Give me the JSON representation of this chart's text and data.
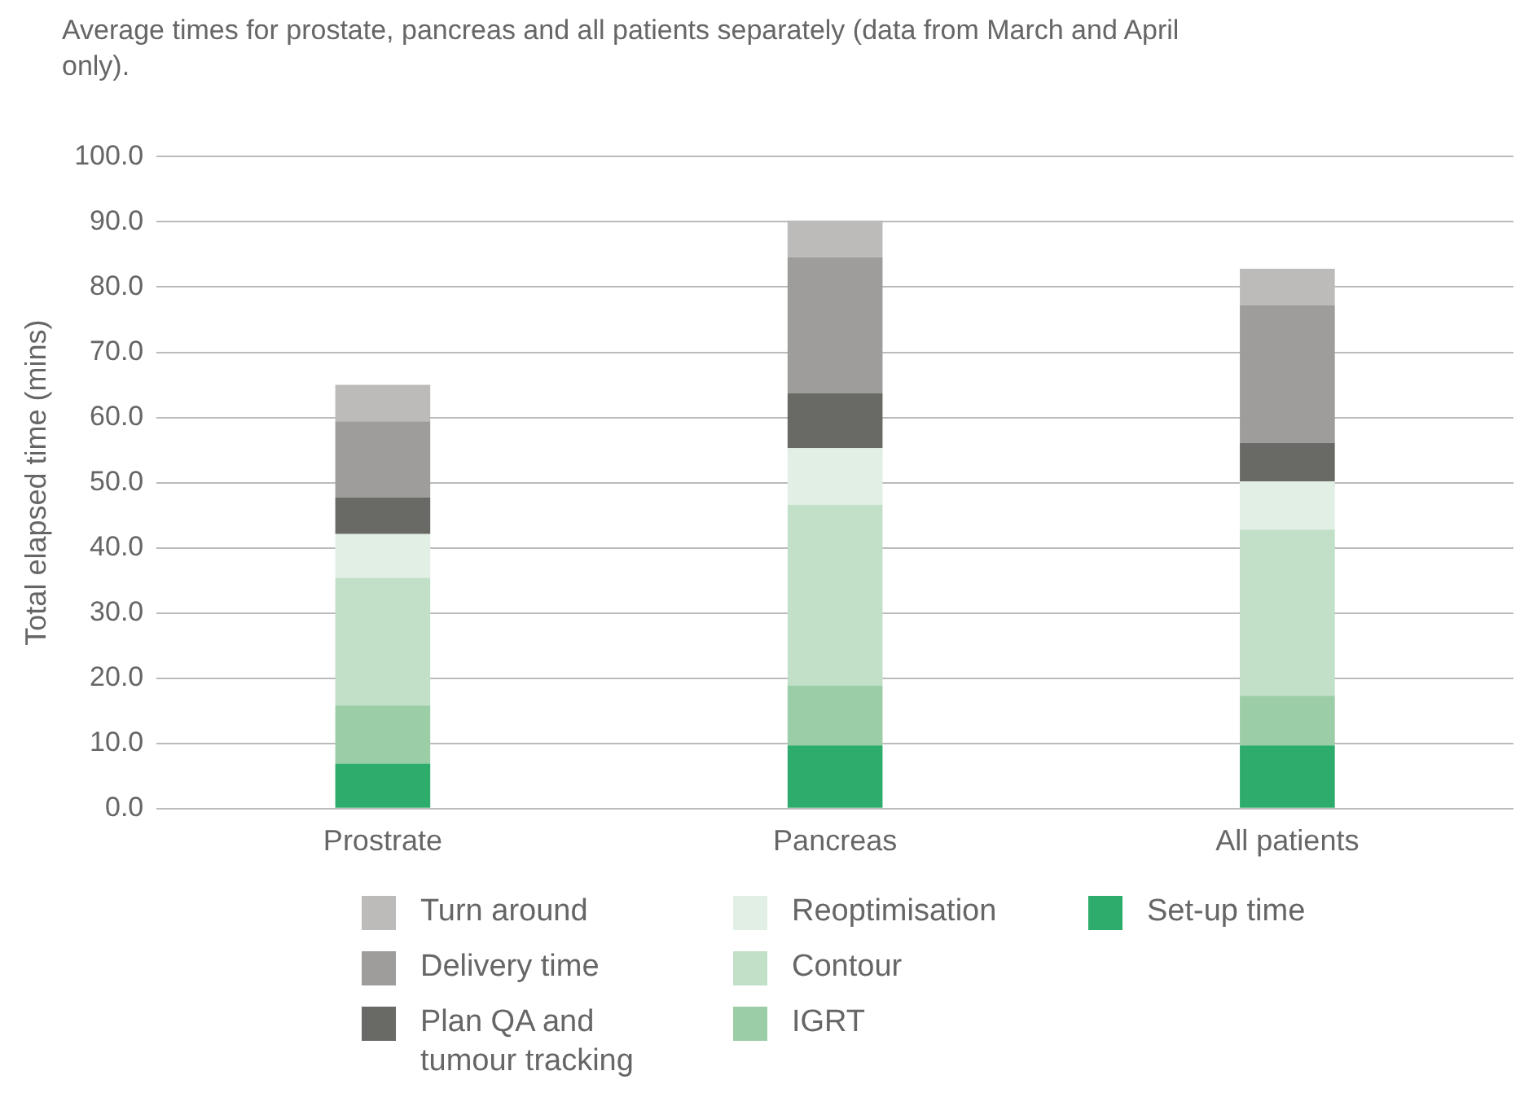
{
  "chart_data": {
    "type": "bar",
    "stacked": true,
    "title": "Average times for prostate, pancreas and all patients separately (data from March and April only).",
    "ylabel": "Total elapsed time (mins)",
    "categories": [
      "Prostrate",
      "Pancreas",
      "All patients"
    ],
    "series": [
      {
        "name": "Set-up time",
        "color": "#2eac6c",
        "values": [
          6.9,
          9.7,
          9.7
        ]
      },
      {
        "name": "IGRT",
        "color": "#9bcda7",
        "values": [
          8.9,
          9.2,
          7.6
        ]
      },
      {
        "name": "Contour",
        "color": "#c2dfc7",
        "values": [
          19.6,
          27.7,
          25.5
        ]
      },
      {
        "name": "Reoptimisation",
        "color": "#e1efe5",
        "values": [
          6.7,
          8.7,
          7.4
        ]
      },
      {
        "name": "Plan QA and tumour tracking",
        "color": "#696a65",
        "values": [
          5.6,
          8.4,
          5.9
        ]
      },
      {
        "name": "Delivery time",
        "color": "#9e9d9b",
        "values": [
          11.7,
          20.9,
          21.1
        ]
      },
      {
        "name": "Turn around",
        "color": "#bcbbb9",
        "values": [
          5.6,
          5.6,
          5.6
        ]
      }
    ],
    "ylim": [
      0,
      100
    ],
    "yticks": [
      {
        "value": 0,
        "label": "0.0"
      },
      {
        "value": 10,
        "label": "10.0"
      },
      {
        "value": 20,
        "label": "20.0"
      },
      {
        "value": 30,
        "label": "30.0"
      },
      {
        "value": 40,
        "label": "40.0"
      },
      {
        "value": 50,
        "label": "50.0"
      },
      {
        "value": 60,
        "label": "60.0"
      },
      {
        "value": 70,
        "label": "70.0"
      },
      {
        "value": 80,
        "label": "80.0"
      },
      {
        "value": 90,
        "label": "90.0"
      },
      {
        "value": 100,
        "label": "100.0"
      }
    ],
    "grid": "y",
    "legend": "bottom"
  }
}
